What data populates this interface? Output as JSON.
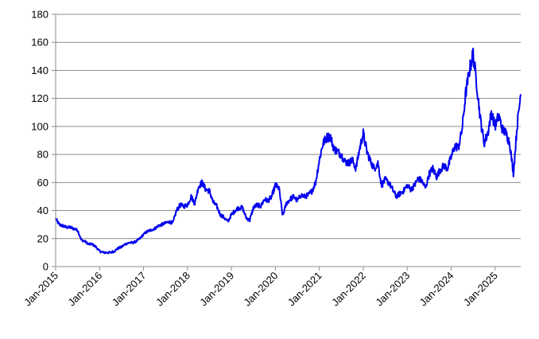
{
  "chart_data": {
    "type": "line",
    "title": "",
    "xlabel": "",
    "ylabel": "",
    "ylim": [
      0,
      180
    ],
    "yticks": [
      0,
      20,
      40,
      60,
      80,
      100,
      120,
      140,
      160,
      180
    ],
    "xlim": [
      "2015-01-01",
      "2025-08-01"
    ],
    "xtick_labels": [
      "Jan-2015",
      "Jan-2016",
      "Jan-2017",
      "Jan-2018",
      "Jan-2019",
      "Jan-2020",
      "Jan-2021",
      "Jan-2022",
      "Jan-2023",
      "Jan-2024",
      "Jan-2025"
    ],
    "grid": true,
    "legend": "none",
    "colors": {
      "line": "#0000ee",
      "grid": "#8c8c8c"
    },
    "series": [
      {
        "x": [
          "2015-01",
          "2015-02",
          "2015-03",
          "2015-04",
          "2015-05",
          "2015-06",
          "2015-07",
          "2015-08",
          "2015-09",
          "2015-10",
          "2015-11",
          "2015-12",
          "2016-01",
          "2016-02",
          "2016-03",
          "2016-04",
          "2016-05",
          "2016-06",
          "2016-07",
          "2016-08",
          "2016-09",
          "2016-10",
          "2016-11",
          "2016-12",
          "2017-01",
          "2017-02",
          "2017-03",
          "2017-04",
          "2017-05",
          "2017-06",
          "2017-07",
          "2017-08",
          "2017-09",
          "2017-10",
          "2017-11",
          "2017-12",
          "2018-01",
          "2018-02",
          "2018-03",
          "2018-04",
          "2018-05",
          "2018-06",
          "2018-07",
          "2018-08",
          "2018-09",
          "2018-10",
          "2018-11",
          "2018-12",
          "2019-01",
          "2019-02",
          "2019-03",
          "2019-04",
          "2019-05",
          "2019-06",
          "2019-07",
          "2019-08",
          "2019-09",
          "2019-10",
          "2019-11",
          "2019-12",
          "2020-01",
          "2020-02",
          "2020-03",
          "2020-04",
          "2020-05",
          "2020-06",
          "2020-07",
          "2020-08",
          "2020-09",
          "2020-10",
          "2020-11",
          "2020-12",
          "2021-01",
          "2021-02",
          "2021-03",
          "2021-04",
          "2021-05",
          "2021-06",
          "2021-07",
          "2021-08",
          "2021-09",
          "2021-10",
          "2021-11",
          "2021-12",
          "2022-01",
          "2022-02",
          "2022-03",
          "2022-04",
          "2022-05",
          "2022-06",
          "2022-07",
          "2022-08",
          "2022-09",
          "2022-10",
          "2022-11",
          "2022-12",
          "2023-01",
          "2023-02",
          "2023-03",
          "2023-04",
          "2023-05",
          "2023-06",
          "2023-07",
          "2023-08",
          "2023-09",
          "2023-10",
          "2023-11",
          "2023-12",
          "2024-01",
          "2024-02",
          "2024-03",
          "2024-04",
          "2024-05",
          "2024-06",
          "2024-07",
          "2024-08",
          "2024-09",
          "2024-10",
          "2024-11",
          "2024-12",
          "2025-01",
          "2025-02",
          "2025-03",
          "2025-04",
          "2025-05",
          "2025-06",
          "2025-07",
          "2025-08"
        ],
        "values": [
          34,
          30,
          29,
          28,
          28,
          27,
          26,
          19,
          18,
          16,
          16,
          14,
          11,
          10,
          10,
          10,
          11,
          13,
          14,
          16,
          17,
          17,
          18,
          20,
          23,
          25,
          26,
          27,
          29,
          30,
          31,
          32,
          31,
          40,
          44,
          43,
          44,
          50,
          45,
          57,
          60,
          55,
          54,
          46,
          43,
          37,
          35,
          32,
          37,
          40,
          42,
          42,
          35,
          33,
          42,
          44,
          43,
          48,
          47,
          50,
          58,
          56,
          36,
          45,
          48,
          50,
          47,
          51,
          50,
          51,
          54,
          60,
          76,
          88,
          92,
          93,
          84,
          82,
          80,
          75,
          74,
          76,
          70,
          84,
          95,
          82,
          75,
          70,
          74,
          58,
          62,
          60,
          55,
          50,
          52,
          54,
          58,
          55,
          58,
          63,
          61,
          56,
          66,
          70,
          64,
          69,
          72,
          70,
          78,
          86,
          85,
          98,
          124,
          140,
          152,
          130,
          105,
          88,
          95,
          110,
          100,
          108,
          98,
          95,
          88,
          66,
          100,
          123
        ]
      }
    ]
  }
}
